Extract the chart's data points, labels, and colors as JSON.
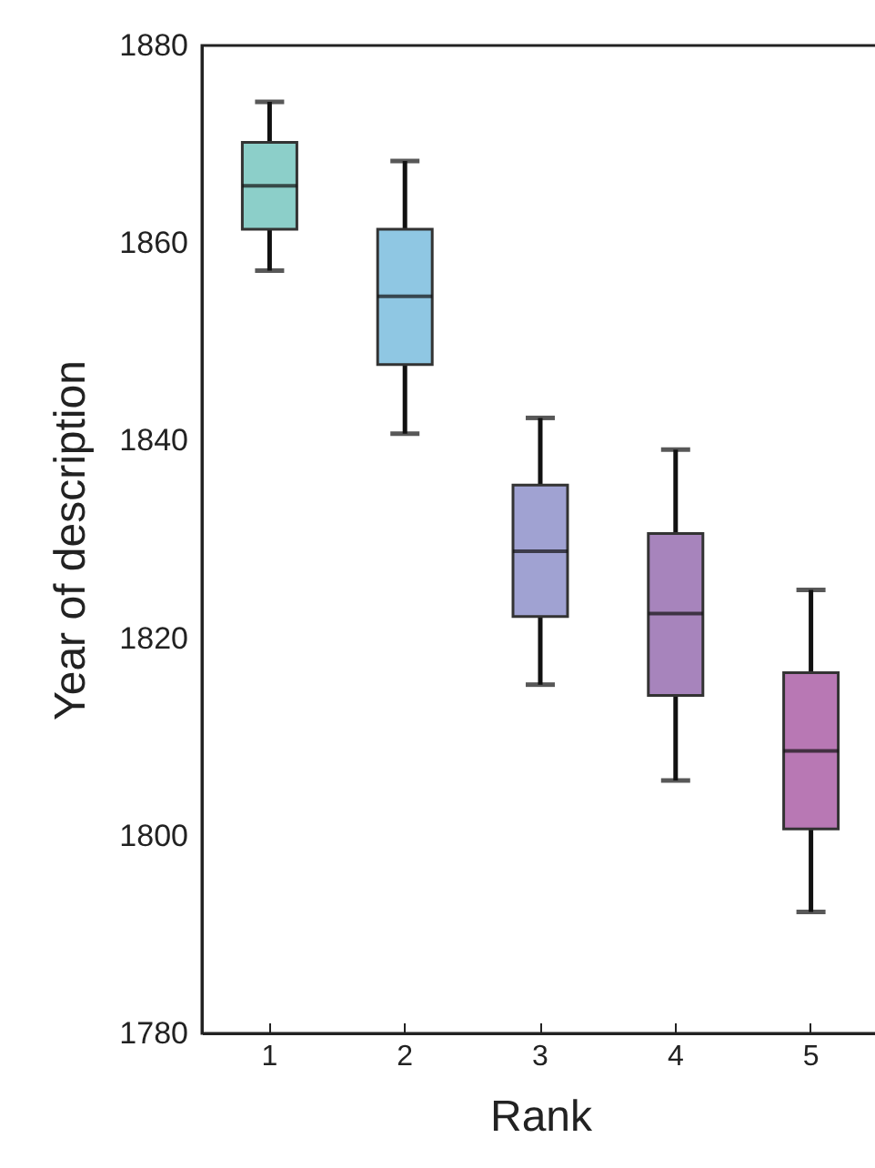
{
  "chart_data": {
    "type": "box",
    "xlabel": "Rank",
    "ylabel": "Year of description",
    "categories": [
      "1",
      "2",
      "3",
      "4",
      "5"
    ],
    "colors": [
      "#8ccfc9",
      "#8fc7e3",
      "#a0a2d2",
      "#a784bc",
      "#b878b4"
    ],
    "boxes": [
      {
        "low": 1857.2,
        "q1": 1861.4,
        "median": 1865.8,
        "q3": 1870.2,
        "high": 1874.3
      },
      {
        "low": 1840.7,
        "q1": 1847.7,
        "median": 1854.6,
        "q3": 1861.4,
        "high": 1868.3
      },
      {
        "low": 1815.3,
        "q1": 1822.2,
        "median": 1828.8,
        "q3": 1835.5,
        "high": 1842.3
      },
      {
        "low": 1805.6,
        "q1": 1814.2,
        "median": 1822.5,
        "q3": 1830.6,
        "high": 1839.1
      },
      {
        "low": 1792.3,
        "q1": 1800.7,
        "median": 1808.6,
        "q3": 1816.5,
        "high": 1824.9
      }
    ],
    "ylim": [
      1780,
      1880
    ],
    "yticks": [
      1780,
      1800,
      1820,
      1840,
      1860,
      1880
    ],
    "grid": false
  }
}
